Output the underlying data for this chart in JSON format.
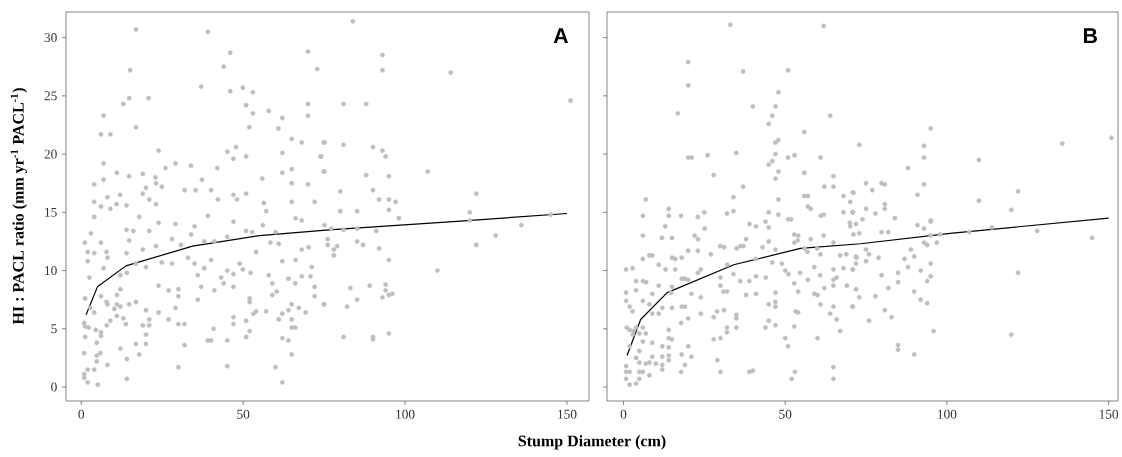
{
  "chart_data": [
    {
      "type": "scatter",
      "title": "A",
      "xlabel": "Stump Diameter (cm)",
      "ylabel": "HI : PACL ratio (mm yr$^{-1}$ PACL$^{-1}$)",
      "xlim": [
        -4.7,
        156.8
      ],
      "ylim": [
        -1.2,
        32.2
      ],
      "xticks": [
        0,
        50,
        100,
        150
      ],
      "yticks": [
        0,
        5,
        10,
        15,
        20,
        25,
        30
      ],
      "series": [
        {
          "color": "#bebebe",
          "marker": "circle",
          "x": [
            16.9,
            39.1,
            46.0,
            70.0,
            44.0,
            15.1,
            72.9,
            37.0,
            46.0,
            49.9,
            53.0,
            14.8,
            20.8,
            13.0,
            50.9,
            53.0,
            57.9,
            70.0,
            70.0,
            62.1,
            6.9,
            16.9,
            51.9,
            6.1,
            9.0,
            60.9,
            65.0,
            68.1,
            74.9,
            23.9,
            45.1,
            47.8,
            47.0,
            50.9,
            62.1,
            73.9,
            6.9,
            29.1,
            33.9,
            26.0,
            42.0,
            65.0,
            74.9,
            11.0,
            19.0,
            6.9,
            14.8,
            22.9,
            37.3,
            55.9,
            62.1,
            70.0,
            4.0,
            20.0,
            23.1,
            24.9,
            31.9,
            35.3,
            40.1,
            47.0,
            50.9,
            65.0,
            19.0,
            12.0,
            8.1,
            21.0,
            42.2,
            48.1,
            4.0,
            6.1,
            9.0,
            10.9,
            14.0,
            23.1,
            56.4,
            65.0,
            72.1,
            57.1,
            4.0,
            17.9,
            39.1,
            66.2,
            68.1,
            23.9,
            29.1,
            47.0,
            56.1,
            3.0,
            14.0,
            16.1,
            21.0,
            35.0,
            50.9,
            52.8,
            60.0,
            1.1,
            6.1,
            14.8,
            28.0,
            33.9,
            41.1,
            45.1,
            58.4,
            61.0,
            4.0,
            2.0,
            7.8,
            14.0,
            19.0,
            23.1,
            30.8,
            38.0,
            54.0,
            62.1,
            70.2,
            2.0,
            8.1,
            16.9,
            28.0,
            33.0,
            48.9,
            68.1,
            66.2,
            6.9,
            20.0,
            24.9,
            35.0,
            40.1,
            45.1,
            49.9,
            71.2,
            2.5,
            12.1,
            14.1,
            36.0,
            38.0,
            43.2,
            57.9,
            64.0,
            68.1,
            47.0,
            70.8,
            52.3,
            44.0,
            47.0,
            23.9,
            37.0,
            59.0,
            66.1,
            72.1,
            12.1,
            41.1,
            27.0,
            30.0,
            60.4,
            6.1,
            1.2,
            11.0,
            30.0,
            59.0,
            72.1,
            36.0,
            52.0,
            7.8,
            8.1,
            11.0,
            14.8,
            16.9,
            52.0,
            65.0,
            74.9,
            2.8,
            10.2,
            12.1,
            29.1,
            4.0,
            23.9,
            54.0,
            57.1,
            64.0,
            67.2,
            69.3,
            53.2,
            11.0,
            62.1,
            47.0,
            20.0,
            9.0,
            13.0,
            21.0,
            27.0,
            61.0,
            65.0,
            50.9,
            0.9,
            7.9,
            13.8,
            19.0,
            21.0,
            30.0,
            31.9,
            47.0,
            1.2,
            2.3,
            40.9,
            65.0,
            66.1,
            4.5,
            6.1,
            20.0,
            52.0,
            1.2,
            6.1,
            50.9,
            39.1,
            40.1,
            45.1,
            62.1,
            64.0,
            4.8,
            16.9,
            20.0,
            31.9,
            12.1,
            0.9,
            17.9,
            65.0,
            4.8,
            5.9,
            4.8,
            14.1,
            8.1,
            30.0,
            45.1,
            60.0,
            2.0,
            4.0,
            0.9,
            0.9,
            2.0,
            5.1,
            14.1,
            62.1,
            83.9,
            93.0,
            93.0,
            114.1,
            151.1,
            81.0,
            88.0,
            75.1,
            81.0,
            90.1,
            93.0,
            94.0,
            74.1,
            75.1,
            88.0,
            95.0,
            107.0,
            80.0,
            90.1,
            92.0,
            95.0,
            97.1,
            122.0,
            80.0,
            85.2,
            95.0,
            98.1,
            120.0,
            75.1,
            77.2,
            81.0,
            85.2,
            91.1,
            120.0,
            135.9,
            145.0,
            76.1,
            76.1,
            85.2,
            87.0,
            79.0,
            78.0,
            78.0,
            92.0,
            122.0,
            128.0,
            95.0,
            110.0,
            83.1,
            89.1,
            94.0,
            94.0,
            96.1,
            95.0,
            93.0,
            85.2,
            75.1,
            82.1,
            81.0,
            90.1,
            90.1,
            95.0
          ],
          "values": [
            30.7,
            30.5,
            28.7,
            28.8,
            27.5,
            27.2,
            27.3,
            25.8,
            25.4,
            25.7,
            25.3,
            24.8,
            24.8,
            24.3,
            24.2,
            23.5,
            23.7,
            24.3,
            23.3,
            23.1,
            23.3,
            22.3,
            22.3,
            21.7,
            21.7,
            22.2,
            21.3,
            21.0,
            21.0,
            20.3,
            20.2,
            20.6,
            19.6,
            19.8,
            20.1,
            19.8,
            19.2,
            19.2,
            19.0,
            18.8,
            18.8,
            18.7,
            18.5,
            18.4,
            18.3,
            17.8,
            18.1,
            18.0,
            17.8,
            17.9,
            18.4,
            17.4,
            17.4,
            17.1,
            17.5,
            17.2,
            16.9,
            16.9,
            16.9,
            16.5,
            16.6,
            17.5,
            16.6,
            16.5,
            16.3,
            16.1,
            16.1,
            16.1,
            15.9,
            15.5,
            15.3,
            15.7,
            15.6,
            15.7,
            15.8,
            15.9,
            15.9,
            15.1,
            14.6,
            14.6,
            14.7,
            14.5,
            14.3,
            14.1,
            14.0,
            14.2,
            13.9,
            13.2,
            13.5,
            13.4,
            13.4,
            13.8,
            13.4,
            13.3,
            13.3,
            12.4,
            12.4,
            12.6,
            12.7,
            13.1,
            12.5,
            12.9,
            12.4,
            12.3,
            11.5,
            11.6,
            11.6,
            11.5,
            11.8,
            12.1,
            12.2,
            12.5,
            11.6,
            10.8,
            12.0,
            10.8,
            11.1,
            10.6,
            10.6,
            11.1,
            10.6,
            11.8,
            10.9,
            10.2,
            10.3,
            10.7,
            10.6,
            10.9,
            10.0,
            10.1,
            10.3,
            9.4,
            9.6,
            9.8,
            9.6,
            10.2,
            9.4,
            9.6,
            9.3,
            9.5,
            9.7,
            9.5,
            9.8,
            8.9,
            8.6,
            8.7,
            8.6,
            8.9,
            8.9,
            8.6,
            8.4,
            8.3,
            8.3,
            8.4,
            8.2,
            7.8,
            7.6,
            7.9,
            7.8,
            7.9,
            7.8,
            7.5,
            7.6,
            7.3,
            7.1,
            7.1,
            7.1,
            7.3,
            7.3,
            7.1,
            7.1,
            6.8,
            6.7,
            6.9,
            6.8,
            6.4,
            6.4,
            6.5,
            6.5,
            6.6,
            6.8,
            6.4,
            6.3,
            6.1,
            6.3,
            6.0,
            6.6,
            5.7,
            5.9,
            5.8,
            5.8,
            5.8,
            5.8,
            5.7,
            5.5,
            5.3,
            5.4,
            5.3,
            5.3,
            5.4,
            5.4,
            5.4,
            5.2,
            5.1,
            5.0,
            5.1,
            5.1,
            4.9,
            4.7,
            4.5,
            4.8,
            4.3,
            4.4,
            4.3,
            4.0,
            4.0,
            4.0,
            4.2,
            4.0,
            3.8,
            3.7,
            3.7,
            3.6,
            3.3,
            2.9,
            2.8,
            2.8,
            2.7,
            2.9,
            2.2,
            2.4,
            1.9,
            1.7,
            1.8,
            1.7,
            1.5,
            1.5,
            1.1,
            0.8,
            0.4,
            0.2,
            0.7,
            0.4,
            31.4,
            28.5,
            27.2,
            27.0,
            24.6,
            24.3,
            24.3,
            21.0,
            20.8,
            20.6,
            20.3,
            19.8,
            19.8,
            18.5,
            18.2,
            18.1,
            18.5,
            16.8,
            16.9,
            16.1,
            16.1,
            15.9,
            16.6,
            15.1,
            15.1,
            15.2,
            14.5,
            15.0,
            13.9,
            13.6,
            13.5,
            13.6,
            13.4,
            14.3,
            13.9,
            14.8,
            12.7,
            12.2,
            12.5,
            12.2,
            12.1,
            11.8,
            11.3,
            11.9,
            12.2,
            13.0,
            10.9,
            10.0,
            8.5,
            8.7,
            8.8,
            8.3,
            8.0,
            7.9,
            7.7,
            7.5,
            7.1,
            6.9,
            4.3,
            4.3,
            4.1,
            4.6
          ]
        },
        {
          "type": "line",
          "color": "#000000",
          "marker": "none",
          "x": [
            1.5,
            5,
            13.8,
            34.4,
            55,
            76.5,
            114.8,
            150
          ],
          "values": [
            6.2,
            8.6,
            10.4,
            12.1,
            13.0,
            13.5,
            14.2,
            14.9
          ]
        }
      ]
    },
    {
      "type": "scatter",
      "title": "B",
      "xlim": [
        -5.1,
        152.9
      ],
      "ylim": [
        -1.2,
        32.2
      ],
      "xticks": [
        0,
        50,
        100,
        150
      ],
      "yticks": [
        0,
        5,
        10,
        15,
        20,
        25,
        30
      ],
      "tick_labels": "x",
      "series": [
        {
          "color": "#bebebe",
          "marker": "circle",
          "x": [
            33.0,
            61.9,
            20.0,
            37.0,
            50.9,
            20.0,
            47.9,
            16.8,
            40.0,
            47.0,
            46.0,
            63.9,
            44.9,
            55.9,
            47.0,
            47.9,
            20.0,
            21.1,
            26.0,
            34.9,
            47.0,
            50.9,
            52.9,
            60.9,
            46.0,
            44.9,
            47.9,
            55.9,
            27.9,
            47.0,
            64.9,
            37.0,
            62.1,
            64.9,
            34.0,
            47.9,
            55.9,
            57.0,
            6.9,
            14.0,
            57.0,
            57.9,
            68.0,
            71.1,
            44.9,
            6.0,
            14.0,
            17.8,
            23.0,
            25.0,
            32.0,
            34.0,
            47.9,
            50.9,
            51.8,
            61.0,
            61.9,
            68.0,
            70.9,
            70.1,
            12.9,
            25.1,
            39.0,
            41.0,
            43.9,
            44.9,
            70.0,
            70.1,
            6.0,
            11.9,
            15.0,
            22.0,
            23.0,
            37.9,
            52.8,
            53.9,
            54.0,
            57.9,
            64.9,
            61.9,
            71.1,
            29.9,
            31.1,
            35.0,
            36.1,
            37.1,
            43.0,
            44.9,
            20.0,
            23.0,
            47.0,
            52.8,
            56.0,
            59.9,
            6.0,
            8.0,
            8.9,
            15.0,
            16.0,
            18.0,
            27.0,
            32.1,
            40.9,
            46.0,
            49.0,
            56.9,
            60.9,
            67.0,
            68.9,
            72.0,
            0.8,
            2.8,
            10.9,
            13.0,
            16.0,
            18.0,
            19.0,
            20.0,
            23.0,
            23.9,
            30.0,
            34.0,
            41.0,
            44.0,
            50.0,
            51.0,
            54.6,
            59.0,
            64.9,
            68.0,
            70.9,
            3.9,
            6.0,
            7.0,
            10.9,
            15.0,
            30.0,
            36.1,
            38.9,
            52.8,
            57.0,
            60.8,
            64.9,
            65.9,
            64.9,
            69.1,
            0.8,
            3.9,
            8.9,
            14.7,
            21.0,
            30.9,
            32.0,
            37.9,
            41.0,
            47.0,
            54.0,
            59.0,
            60.0,
            62.1,
            0.8,
            1.9,
            2.8,
            6.0,
            8.0,
            12.0,
            15.0,
            18.0,
            19.0,
            23.9,
            44.9,
            47.0,
            47.0,
            53.2,
            54.0,
            60.9,
            63.9,
            64.9,
            70.8,
            8.9,
            10.9,
            20.0,
            23.9,
            27.9,
            28.9,
            31.1,
            34.9,
            34.9,
            43.9,
            44.9,
            47.0,
            52.8,
            65.9,
            67.0,
            1.0,
            1.9,
            3.9,
            6.0,
            6.9,
            14.0,
            17.8,
            32.0,
            34.9,
            32.0,
            3.1,
            4.9,
            2.9,
            6.0,
            8.9,
            14.0,
            15.0,
            20.0,
            27.9,
            30.0,
            50.0,
            50.9,
            60.0,
            1.9,
            4.9,
            12.0,
            14.0,
            3.9,
            8.9,
            12.0,
            14.0,
            18.0,
            21.0,
            0.8,
            4.9,
            6.9,
            8.0,
            10.0,
            12.0,
            14.0,
            19.0,
            29.0,
            64.9,
            0.8,
            1.9,
            4.9,
            6.0,
            12.0,
            17.8,
            30.0,
            38.9,
            40.0,
            53.0,
            0.8,
            1.9,
            3.9,
            4.9,
            8.0,
            52.0,
            64.9,
            95.0,
            72.9,
            92.9,
            92.9,
            109.9,
            88.0,
            135.7,
            150.9,
            92.9,
            75.0,
            79.8,
            80.8,
            76.9,
            70.9,
            90.9,
            109.9,
            122.0,
            119.9,
            75.0,
            80.8,
            80.8,
            70.9,
            77.9,
            83.9,
            73.9,
            71.9,
            95.0,
            95.0,
            90.9,
            92.9,
            72.9,
            79.8,
            81.9,
            97.9,
            95.0,
            106.9,
            113.9,
            127.9,
            144.9,
            92.9,
            93.9,
            96.9,
            75.0,
            75.9,
            78.9,
            88.9,
            89.9,
            86.9,
            71.9,
            71.9,
            75.0,
            70.9,
            88.0,
            91.9,
            95.0,
            122.0,
            84.9,
            79.8,
            84.9,
            95.0,
            93.9,
            81.9,
            71.9,
            72.9,
            77.9,
            89.9,
            91.9,
            93.9,
            70.9,
            80.8,
            82.9,
            75.9,
            95.9,
            119.9,
            84.9,
            84.9,
            89.9
          ],
          "values": [
            31.1,
            31.0,
            27.9,
            27.1,
            27.2,
            25.9,
            25.3,
            23.5,
            24.1,
            24.1,
            23.3,
            23.3,
            22.6,
            21.9,
            21.0,
            21.2,
            19.7,
            19.7,
            19.9,
            20.1,
            20.0,
            19.7,
            19.9,
            19.7,
            19.4,
            19.1,
            18.5,
            18.4,
            18.2,
            17.9,
            18.1,
            17.2,
            17.2,
            17.2,
            16.3,
            16.1,
            16.4,
            16.4,
            16.1,
            15.3,
            15.5,
            15.3,
            16.4,
            16.7,
            15.0,
            14.7,
            14.7,
            14.7,
            14.6,
            15.0,
            14.9,
            15.1,
            14.8,
            14.4,
            14.4,
            14.7,
            14.8,
            15.0,
            15.0,
            15.9,
            13.8,
            13.6,
            14.0,
            13.8,
            14.2,
            13.7,
            14.1,
            13.8,
            13.0,
            12.8,
            12.8,
            13.0,
            12.7,
            12.7,
            13.1,
            12.6,
            13.0,
            12.7,
            12.4,
            13.0,
            13.1,
            12.1,
            12.0,
            11.9,
            12.1,
            12.1,
            12.0,
            12.5,
            11.7,
            11.7,
            11.8,
            12.4,
            11.9,
            11.9,
            11.0,
            11.3,
            11.3,
            11.1,
            11.0,
            11.1,
            11.4,
            10.5,
            11.0,
            10.7,
            10.6,
            11.6,
            11.4,
            11.3,
            11.4,
            11.1,
            10.1,
            10.2,
            10.5,
            10.1,
            10.1,
            9.3,
            9.3,
            9.2,
            9.8,
            10.1,
            9.4,
            9.7,
            9.5,
            9.4,
            10.0,
            9.7,
            9.8,
            10.3,
            10.1,
            10.2,
            10.1,
            9.1,
            9.1,
            9.0,
            8.7,
            8.6,
            8.7,
            9.1,
            9.1,
            8.9,
            9.2,
            9.6,
            9.2,
            9.4,
            8.7,
            8.7,
            8.1,
            8.3,
            8.0,
            8.1,
            8.0,
            8.2,
            8.2,
            7.9,
            8.0,
            8.1,
            8.2,
            8.0,
            7.9,
            8.5,
            7.4,
            6.9,
            6.5,
            7.4,
            7.1,
            6.8,
            6.8,
            6.9,
            6.9,
            7.7,
            7.1,
            7.3,
            6.9,
            6.5,
            6.4,
            7.1,
            6.3,
            6.9,
            6.9,
            6.3,
            6.3,
            5.9,
            6.3,
            6.0,
            6.5,
            6.6,
            6.2,
            5.9,
            5.1,
            5.7,
            5.3,
            5.2,
            5.8,
            4.8,
            5.1,
            4.9,
            5.1,
            5.1,
            4.6,
            4.9,
            5.5,
            5.1,
            5.1,
            4.7,
            4.8,
            4.6,
            4.5,
            3.9,
            3.8,
            4.2,
            4.1,
            3.5,
            4.1,
            4.2,
            4.2,
            3.5,
            4.2,
            3.5,
            3.1,
            3.5,
            3.4,
            2.5,
            2.6,
            2.6,
            2.7,
            2.8,
            2.6,
            1.8,
            2.1,
            2.0,
            2.1,
            2.0,
            1.9,
            2.3,
            1.9,
            2.3,
            1.7,
            1.3,
            1.3,
            1.3,
            1.3,
            1.5,
            1.3,
            1.3,
            1.3,
            1.4,
            1.3,
            0.7,
            0.2,
            0.3,
            0.7,
            1.0,
            0.7,
            0.7,
            22.2,
            20.8,
            20.7,
            19.7,
            19.5,
            18.8,
            20.9,
            21.4,
            17.4,
            17.5,
            17.5,
            17.4,
            16.9,
            16.7,
            16.5,
            16.0,
            16.8,
            15.2,
            15.3,
            15.7,
            15.3,
            15.0,
            14.9,
            14.5,
            14.4,
            14.0,
            14.3,
            14.2,
            13.9,
            13.6,
            13.2,
            13.3,
            13.3,
            13.1,
            13.0,
            13.3,
            13.7,
            13.4,
            12.8,
            12.4,
            12.2,
            12.4,
            11.8,
            11.4,
            11.1,
            11.8,
            11.2,
            11.0,
            11.2,
            10.6,
            10.8,
            10.1,
            10.3,
            10.0,
            10.6,
            9.8,
            9.8,
            9.6,
            9.0,
            9.5,
            9.1,
            8.5,
            8.4,
            7.7,
            7.8,
            8.2,
            7.5,
            7.2,
            6.9,
            6.6,
            6.0,
            5.7,
            4.8,
            4.5,
            3.6,
            3.2,
            2.8
          ]
        },
        {
          "type": "line",
          "color": "#000000",
          "marker": "none",
          "x": [
            1.1,
            5.3,
            13.5,
            34.1,
            54.7,
            73.3,
            101,
            150
          ],
          "values": [
            2.7,
            5.8,
            8.1,
            10.5,
            11.9,
            12.3,
            13.2,
            14.5
          ]
        }
      ]
    }
  ]
}
